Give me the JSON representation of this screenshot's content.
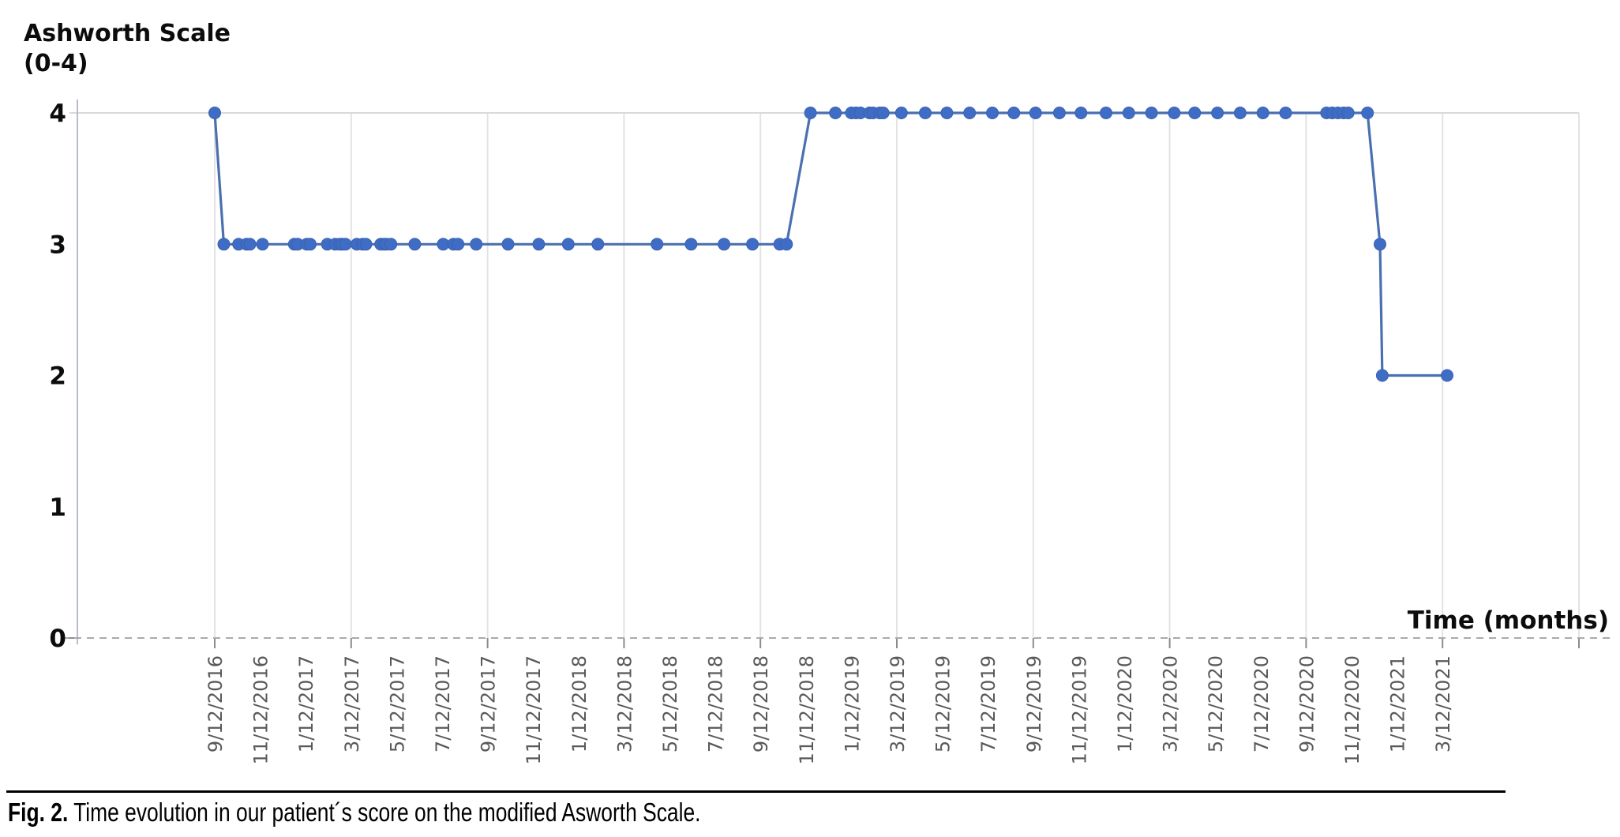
{
  "figure": {
    "y_axis_title_line1": "Ashworth Scale",
    "y_axis_title_line2": "(0-4)",
    "x_axis_title": "Time (months)",
    "caption_label": "Fig. 2.",
    "caption_text": " Time evolution in our patient´s score on the modified Asworth Scale."
  },
  "chart_data": {
    "type": "line",
    "title": "",
    "xlabel": "Time (months)",
    "ylabel": "Ashworth Scale (0-4)",
    "x_unit": "months since 9/12/2016",
    "ylim": [
      0,
      4
    ],
    "y_ticks": [
      0,
      1,
      2,
      3,
      4
    ],
    "x_tick_labels": [
      "9/12/2016",
      "11/12/2016",
      "1/12/2017",
      "3/12/2017",
      "5/12/2017",
      "7/12/2017",
      "9/12/2017",
      "11/12/2017",
      "1/12/2018",
      "3/12/2018",
      "5/12/2018",
      "7/12/2018",
      "9/12/2018",
      "11/12/2018",
      "1/12/2019",
      "3/12/2019",
      "5/12/2019",
      "7/12/2019",
      "9/12/2019",
      "11/12/2019",
      "1/12/2020",
      "3/12/2020",
      "5/12/2020",
      "7/12/2020",
      "9/12/2020",
      "11/12/2020",
      "1/12/2021",
      "3/12/2021"
    ],
    "x_tick_interval_months": 2,
    "vertical_gridline_months": [
      0,
      6,
      12,
      18,
      24,
      30,
      36,
      42,
      48,
      54,
      60
    ],
    "grid": "vertical-every-6-months, top-border, dashed-zero-baseline",
    "legend": "none",
    "series": [
      {
        "name": "Modified Ashworth Scale score",
        "points_m_v": [
          [
            0,
            4
          ],
          [
            0.4,
            3
          ],
          [
            1.05,
            3
          ],
          [
            1.4,
            3
          ],
          [
            1.55,
            3
          ],
          [
            2.1,
            3
          ],
          [
            3.5,
            3
          ],
          [
            3.65,
            3
          ],
          [
            4.05,
            3
          ],
          [
            4.2,
            3
          ],
          [
            4.95,
            3
          ],
          [
            5.3,
            3
          ],
          [
            5.5,
            3
          ],
          [
            5.6,
            3
          ],
          [
            5.75,
            3
          ],
          [
            6.25,
            3
          ],
          [
            6.5,
            3
          ],
          [
            6.65,
            3
          ],
          [
            7.3,
            3
          ],
          [
            7.45,
            3
          ],
          [
            7.55,
            3
          ],
          [
            7.75,
            3
          ],
          [
            8.8,
            3
          ],
          [
            10.05,
            3
          ],
          [
            10.5,
            3
          ],
          [
            10.7,
            3
          ],
          [
            11.5,
            3
          ],
          [
            12.9,
            3
          ],
          [
            14.25,
            3
          ],
          [
            15.55,
            3
          ],
          [
            16.85,
            3
          ],
          [
            19.45,
            3
          ],
          [
            20.95,
            3
          ],
          [
            22.4,
            3
          ],
          [
            23.65,
            3
          ],
          [
            24.85,
            3
          ],
          [
            25.15,
            3
          ],
          [
            26.2,
            4
          ],
          [
            27.3,
            4
          ],
          [
            28.0,
            4
          ],
          [
            28.2,
            4
          ],
          [
            28.4,
            4
          ],
          [
            28.8,
            4
          ],
          [
            28.95,
            4
          ],
          [
            29.25,
            4
          ],
          [
            29.4,
            4
          ],
          [
            30.2,
            4
          ],
          [
            31.25,
            4
          ],
          [
            32.2,
            4
          ],
          [
            33.2,
            4
          ],
          [
            34.2,
            4
          ],
          [
            35.15,
            4
          ],
          [
            36.1,
            4
          ],
          [
            37.15,
            4
          ],
          [
            38.1,
            4
          ],
          [
            39.2,
            4
          ],
          [
            40.2,
            4
          ],
          [
            41.2,
            4
          ],
          [
            42.2,
            4
          ],
          [
            43.1,
            4
          ],
          [
            44.1,
            4
          ],
          [
            45.1,
            4
          ],
          [
            46.1,
            4
          ],
          [
            47.1,
            4
          ],
          [
            48.9,
            4
          ],
          [
            49.15,
            4
          ],
          [
            49.4,
            4
          ],
          [
            49.65,
            4
          ],
          [
            49.85,
            4
          ],
          [
            50.7,
            4
          ],
          [
            51.25,
            3
          ],
          [
            51.35,
            2
          ],
          [
            54.2,
            2
          ]
        ]
      }
    ],
    "colors": {
      "marker": "#3F6DC5",
      "line": "#4A70B0",
      "grid": "#E3E3E3",
      "axis_line": "#B6BDC9",
      "tick_stub": "#8C8C8C",
      "zero_dash": "#AAAAAA",
      "x_tick_text": "#595959",
      "y_tick_text": "#0C0C0C"
    }
  }
}
